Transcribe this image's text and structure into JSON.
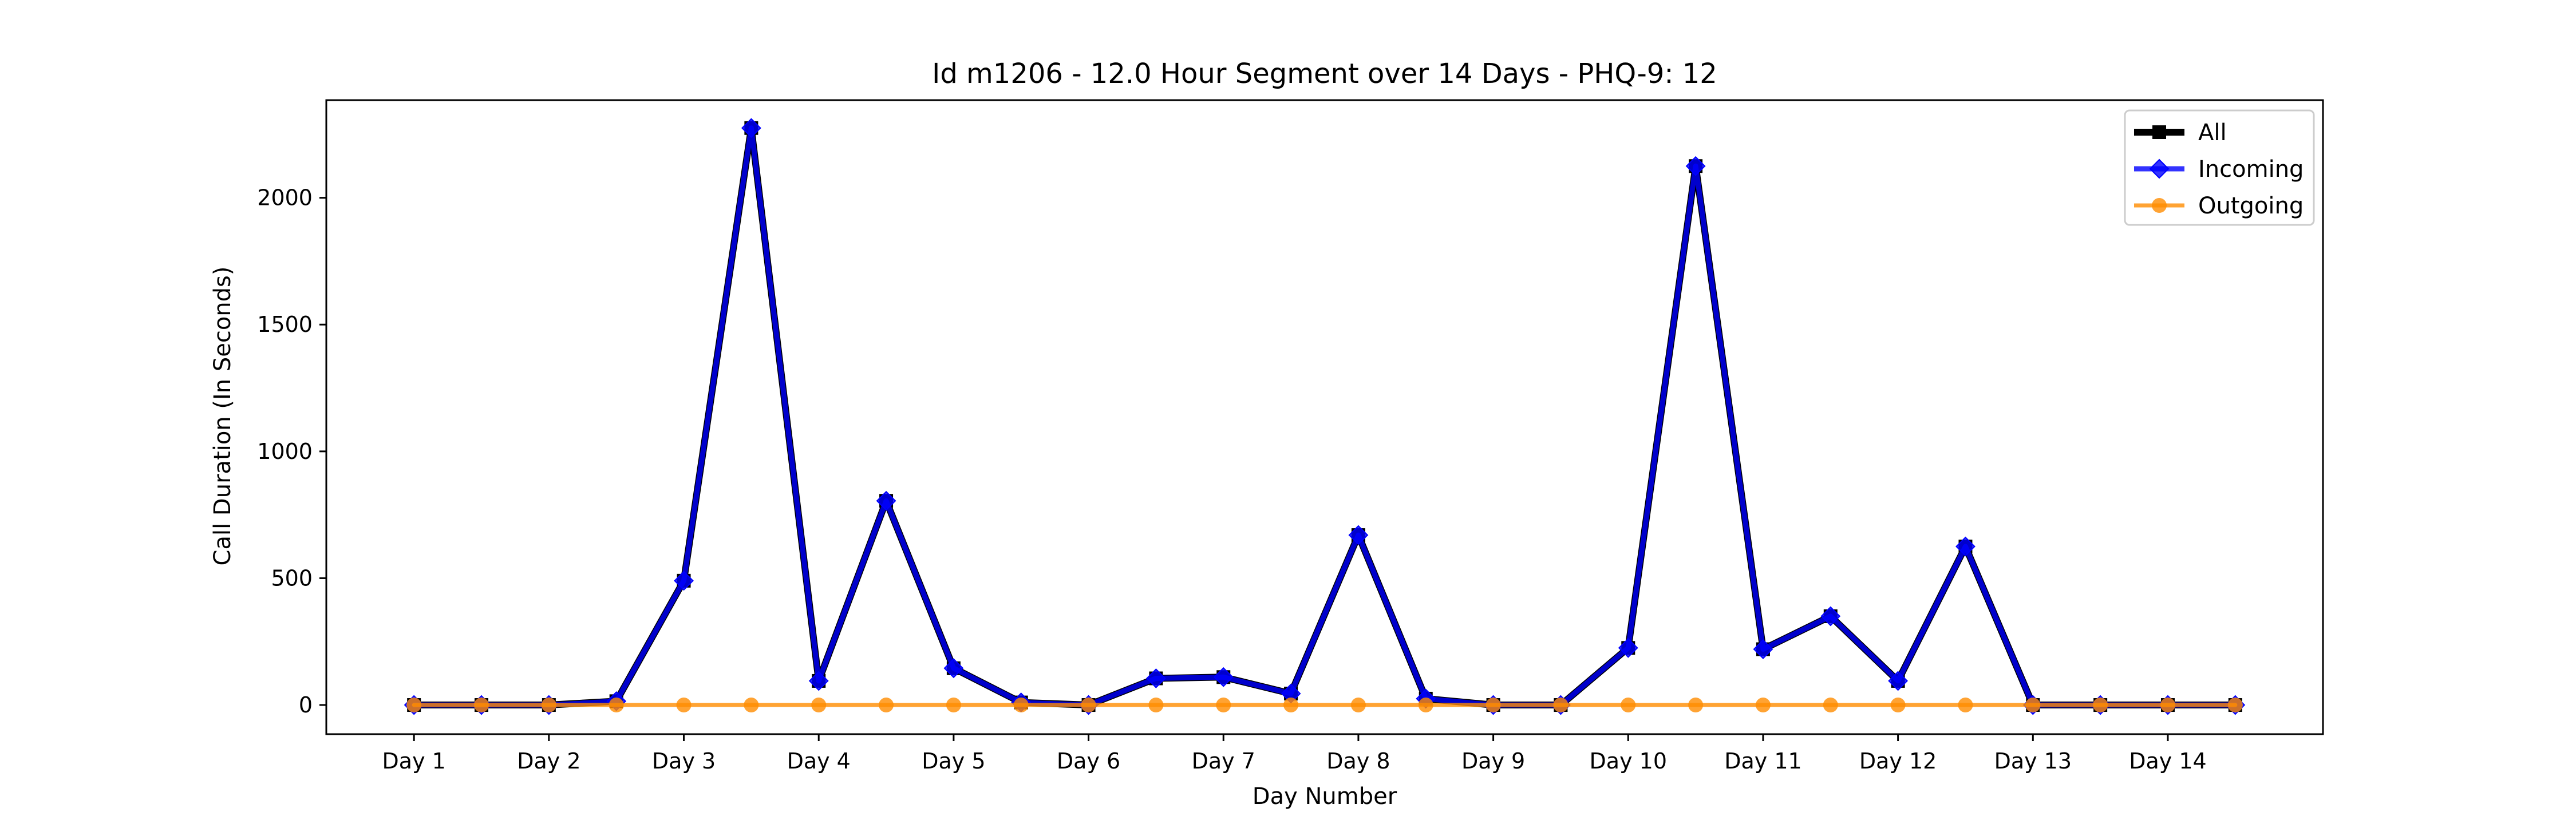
{
  "chart_data": {
    "type": "line",
    "title": "Id m1206 - 12.0 Hour Segment over 14 Days - PHQ-9: 12",
    "xlabel": "Day Number",
    "ylabel": "Call Duration (In Seconds)",
    "x_tick_labels": [
      "Day 1",
      "Day 2",
      "Day 3",
      "Day 4",
      "Day 5",
      "Day 6",
      "Day 7",
      "Day 8",
      "Day 9",
      "Day 10",
      "Day 11",
      "Day 12",
      "Day 13",
      "Day 14"
    ],
    "y_ticks": [
      0,
      500,
      1000,
      1500,
      2000
    ],
    "ylim": [
      -115,
      2385
    ],
    "xlim": [
      0.35,
      15.15
    ],
    "grid": false,
    "legend_position": "top-right",
    "x": [
      1,
      1.5,
      2,
      2.5,
      3,
      3.5,
      4,
      4.5,
      5,
      5.5,
      6,
      6.5,
      7,
      7.5,
      8,
      8.5,
      9,
      9.5,
      10,
      10.5,
      11,
      11.5,
      12,
      12.5,
      13,
      13.5,
      14,
      14.5
    ],
    "series": [
      {
        "name": "All",
        "color": "#000000",
        "marker": "square",
        "values": [
          0,
          0,
          0,
          15,
          490,
          2275,
          95,
          805,
          145,
          10,
          0,
          105,
          110,
          45,
          670,
          25,
          0,
          0,
          225,
          2125,
          220,
          350,
          95,
          625,
          0,
          0,
          0,
          0
        ]
      },
      {
        "name": "Incoming",
        "color": "#0000ff",
        "marker": "diamond",
        "values": [
          0,
          0,
          0,
          15,
          490,
          2275,
          95,
          805,
          145,
          10,
          0,
          105,
          110,
          45,
          670,
          25,
          0,
          0,
          225,
          2125,
          220,
          350,
          95,
          625,
          0,
          0,
          0,
          0
        ]
      },
      {
        "name": "Outgoing",
        "color": "#ff8c00",
        "marker": "circle",
        "values": [
          0,
          0,
          0,
          0,
          0,
          0,
          0,
          0,
          0,
          0,
          0,
          0,
          0,
          0,
          0,
          0,
          0,
          0,
          0,
          0,
          0,
          0,
          0,
          0,
          0,
          0,
          0,
          0
        ]
      }
    ]
  }
}
